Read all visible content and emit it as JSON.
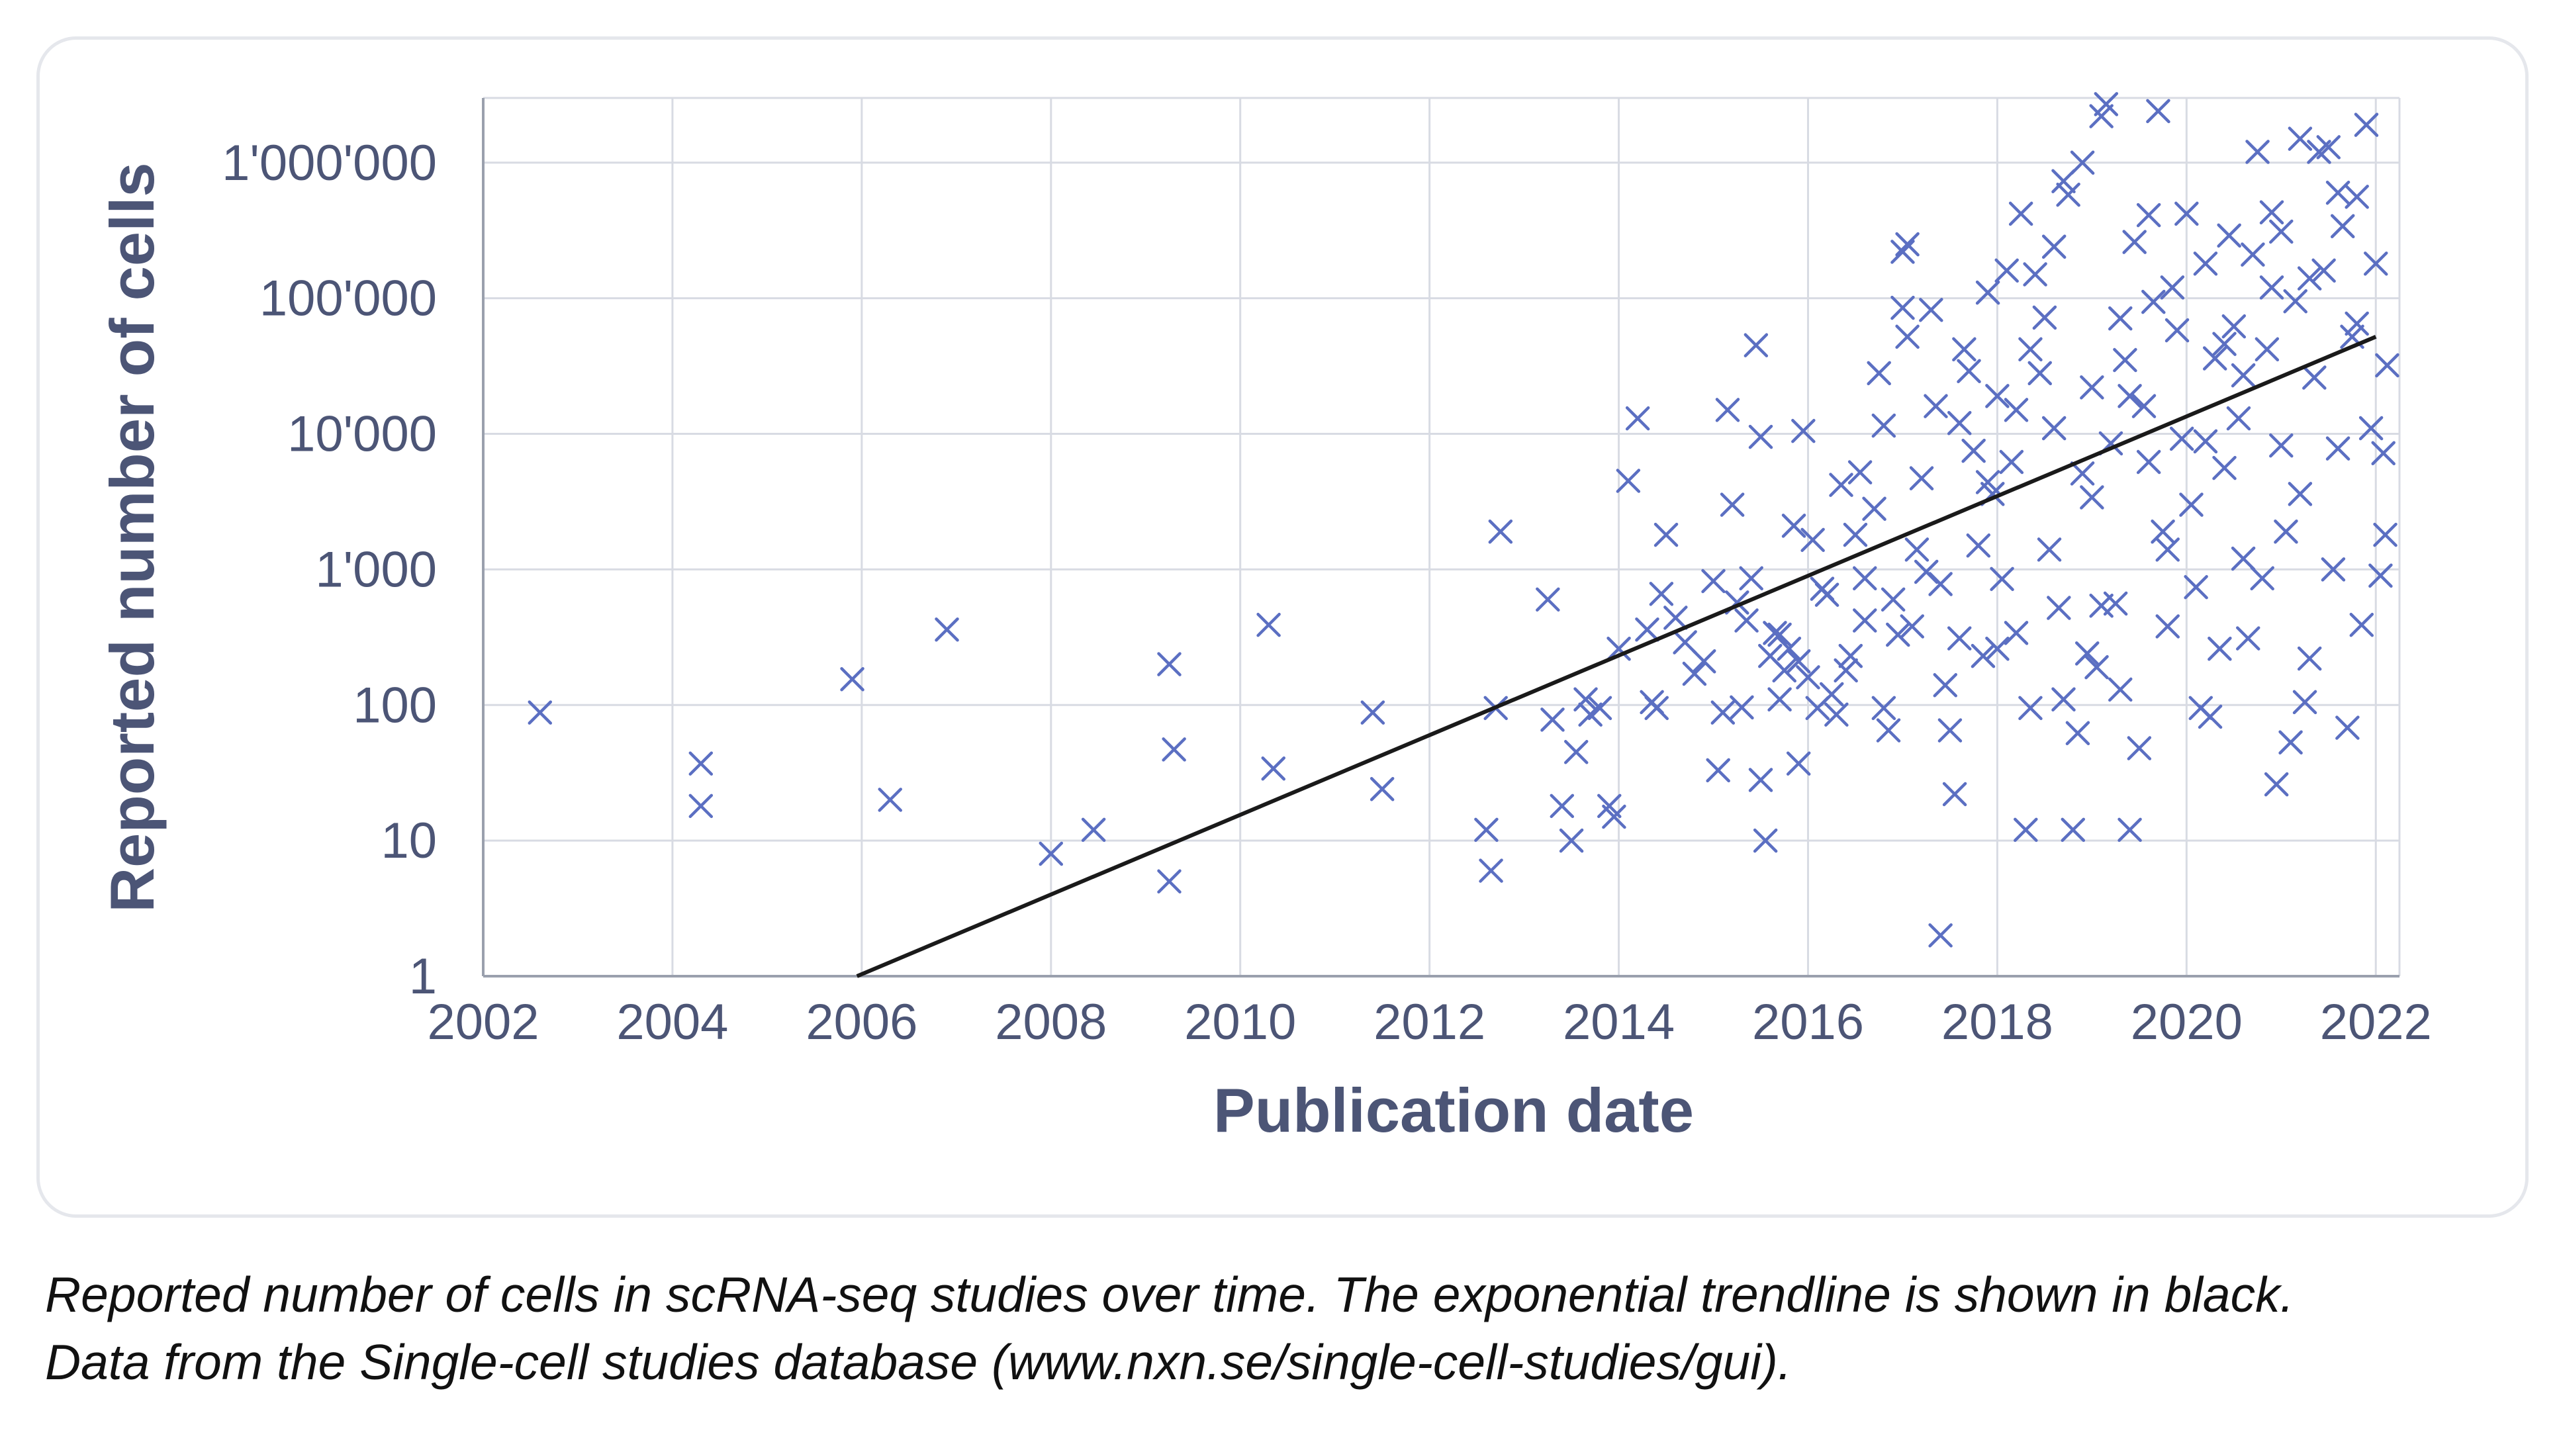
{
  "chart_data": {
    "type": "scatter",
    "xlabel": "Publication date",
    "ylabel": "Reported number of cells",
    "x_ticks": [
      "2002",
      "2004",
      "2006",
      "2008",
      "2010",
      "2012",
      "2014",
      "2016",
      "2018",
      "2020",
      "2022"
    ],
    "y_ticks": [
      "1",
      "10",
      "100",
      "1'000",
      "10'000",
      "100'000",
      "1'000'000"
    ],
    "xlim": [
      2002,
      2022.25
    ],
    "ylim": [
      1,
      3000000
    ],
    "y_scale": "log",
    "grid": true,
    "legend": "none",
    "marker": "x",
    "colors": {
      "points": "#5b6fc2",
      "trend": "#1a1a1a",
      "grid": "#d8dbe3",
      "text": "#4c5576"
    },
    "trendline": {
      "type": "exponential",
      "points": [
        [
          2005.95,
          1
        ],
        [
          2022.0,
          52000
        ]
      ]
    },
    "points": [
      [
        2002.6,
        88
      ],
      [
        2004.3,
        37
      ],
      [
        2004.3,
        18
      ],
      [
        2005.9,
        155
      ],
      [
        2006.3,
        20
      ],
      [
        2006.9,
        360
      ],
      [
        2008.0,
        8
      ],
      [
        2008.45,
        12
      ],
      [
        2009.25,
        5
      ],
      [
        2009.25,
        200
      ],
      [
        2009.3,
        47
      ],
      [
        2010.3,
        390
      ],
      [
        2010.35,
        34
      ],
      [
        2011.4,
        88
      ],
      [
        2011.5,
        24
      ],
      [
        2012.6,
        12
      ],
      [
        2012.65,
        6
      ],
      [
        2012.7,
        95
      ],
      [
        2012.75,
        1900
      ],
      [
        2013.25,
        600
      ],
      [
        2013.3,
        78
      ],
      [
        2013.4,
        18
      ],
      [
        2013.5,
        10
      ],
      [
        2013.55,
        45
      ],
      [
        2013.65,
        110
      ],
      [
        2013.7,
        85
      ],
      [
        2013.8,
        95
      ],
      [
        2013.9,
        18
      ],
      [
        2013.95,
        15
      ],
      [
        2014.0,
        260
      ],
      [
        2014.1,
        4500
      ],
      [
        2014.2,
        13000
      ],
      [
        2014.3,
        360
      ],
      [
        2014.35,
        105
      ],
      [
        2014.4,
        95
      ],
      [
        2014.45,
        660
      ],
      [
        2014.5,
        1800
      ],
      [
        2014.6,
        440
      ],
      [
        2014.7,
        290
      ],
      [
        2014.8,
        170
      ],
      [
        2014.9,
        210
      ],
      [
        2015.0,
        820
      ],
      [
        2015.05,
        33
      ],
      [
        2015.1,
        88
      ],
      [
        2015.15,
        15000
      ],
      [
        2015.2,
        3000
      ],
      [
        2015.25,
        570
      ],
      [
        2015.3,
        96
      ],
      [
        2015.35,
        420
      ],
      [
        2015.4,
        860
      ],
      [
        2015.45,
        45000
      ],
      [
        2015.5,
        9500
      ],
      [
        2015.5,
        28
      ],
      [
        2015.55,
        10
      ],
      [
        2015.6,
        230
      ],
      [
        2015.65,
        340
      ],
      [
        2015.7,
        110
      ],
      [
        2015.75,
        180
      ],
      [
        2015.8,
        260
      ],
      [
        2015.85,
        2100
      ],
      [
        2015.9,
        37
      ],
      [
        2015.95,
        10500
      ],
      [
        2016.0,
        160
      ],
      [
        2016.05,
        1650
      ],
      [
        2016.1,
        95
      ],
      [
        2016.15,
        720
      ],
      [
        2016.2,
        650
      ],
      [
        2016.25,
        120
      ],
      [
        2016.3,
        85
      ],
      [
        2016.35,
        4200
      ],
      [
        2016.45,
        230
      ],
      [
        2016.5,
        1800
      ],
      [
        2016.55,
        5200
      ],
      [
        2016.6,
        420
      ],
      [
        2016.7,
        2800
      ],
      [
        2016.75,
        28000
      ],
      [
        2016.8,
        11500
      ],
      [
        2016.85,
        65
      ],
      [
        2016.9,
        600
      ],
      [
        2016.95,
        330
      ],
      [
        2017.0,
        85000
      ],
      [
        2017.0,
        220000
      ],
      [
        2017.05,
        250000
      ],
      [
        2017.05,
        52000
      ],
      [
        2017.1,
        380
      ],
      [
        2017.15,
        1400
      ],
      [
        2017.2,
        4700
      ],
      [
        2017.25,
        960
      ],
      [
        2017.3,
        82000
      ],
      [
        2017.35,
        16000
      ],
      [
        2017.4,
        2
      ],
      [
        2017.45,
        140
      ],
      [
        2017.5,
        65
      ],
      [
        2017.55,
        22
      ],
      [
        2017.6,
        310
      ],
      [
        2017.65,
        42000
      ],
      [
        2017.7,
        29000
      ],
      [
        2017.75,
        7500
      ],
      [
        2017.8,
        1500
      ],
      [
        2017.85,
        230
      ],
      [
        2017.9,
        110000
      ],
      [
        2017.95,
        3600
      ],
      [
        2018.0,
        19000
      ],
      [
        2018.05,
        850
      ],
      [
        2018.1,
        160000
      ],
      [
        2018.15,
        6200
      ],
      [
        2018.2,
        340
      ],
      [
        2018.25,
        420000
      ],
      [
        2018.3,
        12
      ],
      [
        2018.35,
        95
      ],
      [
        2018.4,
        150000
      ],
      [
        2018.45,
        28000
      ],
      [
        2018.5,
        72000
      ],
      [
        2018.55,
        1400
      ],
      [
        2018.6,
        11000
      ],
      [
        2018.65,
        520
      ],
      [
        2018.7,
        110
      ],
      [
        2018.7,
        730000
      ],
      [
        2018.75,
        580000
      ],
      [
        2018.8,
        12
      ],
      [
        2018.85,
        62
      ],
      [
        2018.9,
        1000000
      ],
      [
        2018.95,
        240
      ],
      [
        2019.0,
        22000
      ],
      [
        2019.05,
        190
      ],
      [
        2019.1,
        2200000
      ],
      [
        2019.15,
        2700000
      ],
      [
        2019.2,
        8500
      ],
      [
        2019.25,
        560
      ],
      [
        2019.3,
        130
      ],
      [
        2019.35,
        35000
      ],
      [
        2019.4,
        12
      ],
      [
        2019.45,
        260000
      ],
      [
        2019.5,
        48
      ],
      [
        2019.55,
        16000
      ],
      [
        2019.6,
        6200
      ],
      [
        2019.65,
        94000
      ],
      [
        2019.7,
        2400000
      ],
      [
        2019.75,
        1900
      ],
      [
        2019.8,
        380
      ],
      [
        2019.85,
        120000
      ],
      [
        2019.9,
        58000
      ],
      [
        2019.95,
        9200
      ],
      [
        2020.0,
        420000
      ],
      [
        2020.05,
        3000
      ],
      [
        2020.1,
        740
      ],
      [
        2020.15,
        95
      ],
      [
        2020.2,
        180000
      ],
      [
        2020.25,
        82
      ],
      [
        2020.3,
        36000
      ],
      [
        2020.35,
        260
      ],
      [
        2020.4,
        5600
      ],
      [
        2020.45,
        290000
      ],
      [
        2020.5,
        62000
      ],
      [
        2020.55,
        13000
      ],
      [
        2020.6,
        1200
      ],
      [
        2020.65,
        310
      ],
      [
        2020.7,
        210000
      ],
      [
        2020.75,
        1200000
      ],
      [
        2020.8,
        860
      ],
      [
        2020.85,
        42000
      ],
      [
        2020.9,
        430000
      ],
      [
        2020.95,
        26
      ],
      [
        2021.0,
        8200
      ],
      [
        2021.05,
        1900
      ],
      [
        2021.1,
        53
      ],
      [
        2021.15,
        95000
      ],
      [
        2021.2,
        1500000
      ],
      [
        2021.25,
        105
      ],
      [
        2021.3,
        220
      ],
      [
        2021.35,
        26000
      ],
      [
        2021.4,
        1200000
      ],
      [
        2021.45,
        160000
      ],
      [
        2021.5,
        1300000
      ],
      [
        2021.55,
        1000
      ],
      [
        2021.6,
        7800
      ],
      [
        2021.65,
        340000
      ],
      [
        2021.7,
        68
      ],
      [
        2021.75,
        52000
      ],
      [
        2021.8,
        560000
      ],
      [
        2021.85,
        390
      ],
      [
        2021.9,
        1900000
      ],
      [
        2021.95,
        11000
      ],
      [
        2022.0,
        180000
      ],
      [
        2022.05,
        900
      ],
      [
        2022.08,
        7200
      ],
      [
        2022.1,
        1800
      ],
      [
        2022.12,
        32000
      ],
      [
        2021.3,
        140000
      ],
      [
        2021.0,
        310000
      ],
      [
        2019.6,
        410000
      ],
      [
        2018.35,
        42000
      ],
      [
        2017.4,
        780
      ],
      [
        2016.8,
        95
      ],
      [
        2015.9,
        210
      ],
      [
        2019.0,
        3400
      ],
      [
        2020.6,
        27000
      ],
      [
        2021.6,
        600000
      ],
      [
        2018.9,
        5100
      ],
      [
        2019.3,
        71000
      ],
      [
        2020.2,
        8800
      ],
      [
        2017.6,
        12000
      ],
      [
        2016.4,
        180
      ],
      [
        2018.0,
        260
      ],
      [
        2019.8,
        1400
      ],
      [
        2021.2,
        3600
      ],
      [
        2020.9,
        120000
      ],
      [
        2018.6,
        240000
      ],
      [
        2019.4,
        19000
      ],
      [
        2017.9,
        4400
      ],
      [
        2016.6,
        860
      ],
      [
        2015.7,
        330
      ],
      [
        2020.4,
        46000
      ],
      [
        2021.8,
        65000
      ],
      [
        2019.1,
        540
      ],
      [
        2018.2,
        15000
      ]
    ]
  },
  "caption": {
    "line1": "Reported number of cells in scRNA-seq studies over time. The exponential trendline is shown in black.",
    "line2": "Data from the Single-cell studies database (www.nxn.se/single-cell-studies/gui)."
  }
}
